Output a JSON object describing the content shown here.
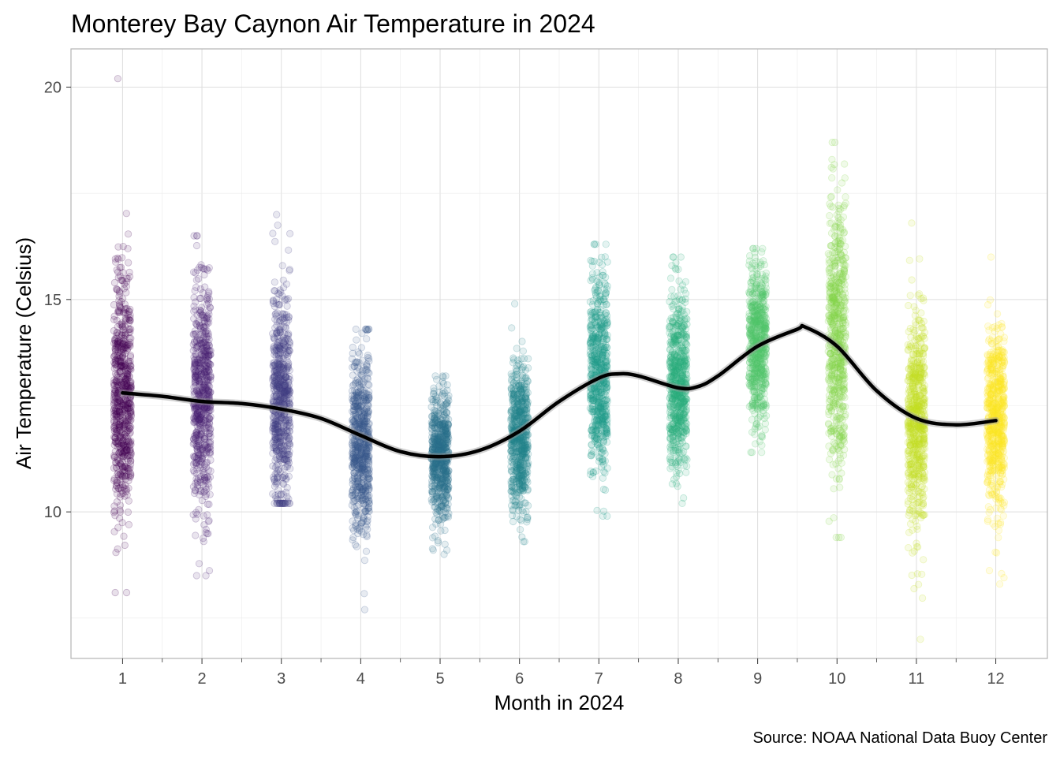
{
  "chart_data": {
    "type": "scatter",
    "title": "Monterey Bay Caynon Air Temperature in 2024",
    "xlabel": "Month in 2024",
    "ylabel": "Air Temperature (Celsius)",
    "caption": "Source: NOAA National Data Buoy Center",
    "xlim": [
      0.35,
      12.65
    ],
    "ylim": [
      6.55,
      20.9
    ],
    "x_ticks": [
      1,
      2,
      3,
      4,
      5,
      6,
      7,
      8,
      9,
      10,
      11,
      12
    ],
    "x_tick_labels": [
      "1",
      "2",
      "3",
      "4",
      "5",
      "6",
      "7",
      "8",
      "9",
      "10",
      "11",
      "12"
    ],
    "y_ticks": [
      10,
      15,
      20
    ],
    "y_tick_labels": [
      "10",
      "15",
      "20"
    ],
    "grid": true,
    "jitter": true,
    "point_alpha": 0.12,
    "series": [
      {
        "month": 1,
        "color": "#440154",
        "mean": 12.8,
        "sd": 1.45,
        "min": 8.1,
        "max": 20.2
      },
      {
        "month": 2,
        "color": "#482173",
        "mean": 12.7,
        "sd": 1.35,
        "min": 8.5,
        "max": 16.5
      },
      {
        "month": 3,
        "color": "#433E85",
        "mean": 12.6,
        "sd": 1.25,
        "min": 10.2,
        "max": 17.0
      },
      {
        "month": 4,
        "color": "#38598C",
        "mean": 11.6,
        "sd": 1.05,
        "min": 7.7,
        "max": 14.3
      },
      {
        "month": 5,
        "color": "#2D708E",
        "mean": 11.3,
        "sd": 0.75,
        "min": 9.0,
        "max": 13.2
      },
      {
        "month": 6,
        "color": "#25858E",
        "mean": 11.8,
        "sd": 0.85,
        "min": 9.3,
        "max": 14.9
      },
      {
        "month": 7,
        "color": "#1E9B8A",
        "mean": 13.3,
        "sd": 1.15,
        "min": 9.9,
        "max": 16.3
      },
      {
        "month": 8,
        "color": "#2BB07F",
        "mean": 13.0,
        "sd": 1.05,
        "min": 10.2,
        "max": 16.0
      },
      {
        "month": 9,
        "color": "#51C56A",
        "mean": 14.0,
        "sd": 0.95,
        "min": 11.4,
        "max": 16.2
      },
      {
        "month": 10,
        "color": "#85D54A",
        "mean": 14.2,
        "sd": 1.55,
        "min": 9.4,
        "max": 18.7
      },
      {
        "month": 11,
        "color": "#C2DF23",
        "mean": 12.1,
        "sd": 1.25,
        "min": 7.0,
        "max": 16.8
      },
      {
        "month": 12,
        "color": "#FDE725",
        "mean": 12.2,
        "sd": 1.05,
        "min": 8.3,
        "max": 16.0
      }
    ],
    "smooth": {
      "color": "#000000",
      "x": [
        1,
        1.5,
        2,
        2.5,
        3,
        3.5,
        4,
        4.5,
        5,
        5.5,
        6,
        6.5,
        7,
        7.25,
        7.5,
        8,
        8.25,
        8.5,
        9,
        9.5,
        9.6,
        10,
        10.5,
        11,
        11.5,
        12
      ],
      "y": [
        12.8,
        12.72,
        12.6,
        12.55,
        12.42,
        12.2,
        11.8,
        11.42,
        11.3,
        11.45,
        11.9,
        12.6,
        13.15,
        13.25,
        13.2,
        12.92,
        12.95,
        13.2,
        13.9,
        14.3,
        14.35,
        13.9,
        12.85,
        12.2,
        12.05,
        12.15
      ]
    }
  }
}
